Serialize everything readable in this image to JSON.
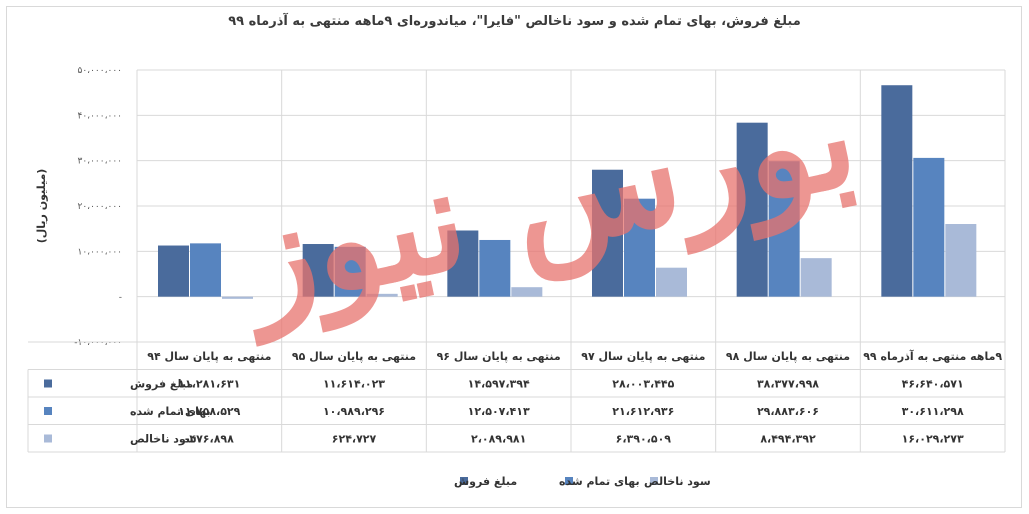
{
  "chart_data": {
    "type": "bar",
    "title": "مبلغ فروش، بهای تمام شده و سود ناخالص \"فایرا\"، میاندوره‌ای ۹ماهه منتهی به آذرماه ۹۹",
    "ylabel": "(میلیون ریال)",
    "ylim": [
      -10000000,
      50000000
    ],
    "yticks": [
      -10000000,
      0,
      10000000,
      20000000,
      30000000,
      40000000,
      50000000
    ],
    "ytick_labels": [
      "-۱۰،۰۰۰،۰۰۰",
      "-",
      "۱۰،۰۰۰،۰۰۰",
      "۲۰،۰۰۰،۰۰۰",
      "۳۰،۰۰۰،۰۰۰",
      "۴۰،۰۰۰،۰۰۰",
      "۵۰،۰۰۰،۰۰۰"
    ],
    "grid": true,
    "legend_position": "bottom",
    "categories": [
      "منتهی به پایان سال ۹۴",
      "منتهی به پایان سال ۹۵",
      "منتهی به پایان سال ۹۶",
      "منتهی به پایان سال ۹۷",
      "منتهی به پایان سال ۹۸",
      "۹ماهه منتهی به آذرماه ۹۹"
    ],
    "series": [
      {
        "name": "مبلغ فروش",
        "color": "#4a6b9c",
        "values": [
          11281631,
          11614023,
          14597394,
          28003445,
          38377998,
          46640571
        ],
        "labels": [
          "۱۱،۲۸۱،۶۳۱",
          "۱۱،۶۱۴،۰۲۳",
          "۱۴،۵۹۷،۳۹۴",
          "۲۸،۰۰۳،۴۴۵",
          "۳۸،۳۷۷،۹۹۸",
          "۴۶،۶۴۰،۵۷۱"
        ]
      },
      {
        "name": "بهای تمام شده",
        "color": "#5784bf",
        "values": [
          11758529,
          10989296,
          12507413,
          21612936,
          29883606,
          30611298
        ],
        "labels": [
          "۱۱،۷۵۸،۵۲۹",
          "۱۰،۹۸۹،۲۹۶",
          "۱۲،۵۰۷،۴۱۳",
          "۲۱،۶۱۲،۹۳۶",
          "۲۹،۸۸۳،۶۰۶",
          "۳۰،۶۱۱،۲۹۸"
        ]
      },
      {
        "name": "سود ناخالص",
        "color": "#a9bad8",
        "values": [
          -476898,
          624727,
          2089981,
          6390509,
          8494392,
          16029273
        ],
        "labels": [
          "-۴۷۶،۸۹۸",
          "۶۲۴،۷۲۷",
          "۲،۰۸۹،۹۸۱",
          "۶،۳۹۰،۵۰۹",
          "۸،۴۹۴،۳۹۲",
          "۱۶،۰۲۹،۲۷۳"
        ]
      }
    ],
    "watermark": "بورس نیوز"
  }
}
